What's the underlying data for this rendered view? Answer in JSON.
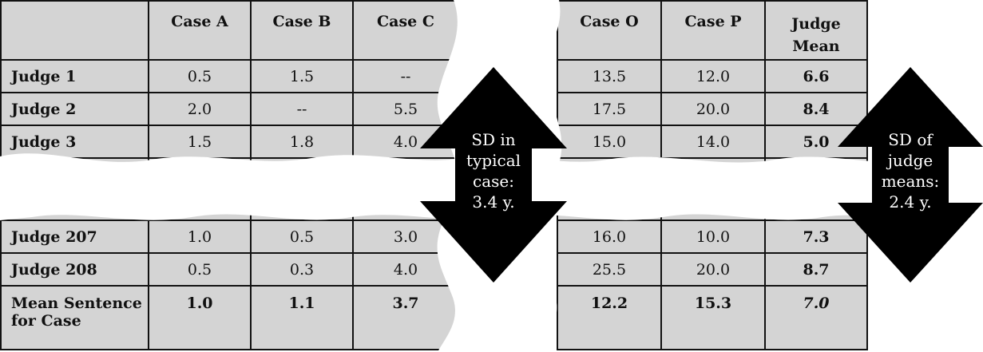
{
  "left_table": {
    "headers": [
      "",
      "Case A",
      "Case B",
      "Case C"
    ],
    "rows": [
      {
        "label": "Judge 1",
        "cells": [
          "0.5",
          "1.5",
          "--"
        ]
      },
      {
        "label": "Judge 2",
        "cells": [
          "2.0",
          "--",
          "5.5"
        ]
      },
      {
        "label": "Judge 3",
        "cells": [
          "1.5",
          "1.8",
          "4.0"
        ]
      },
      {
        "label": "",
        "cells": [
          "",
          "",
          ""
        ]
      },
      {
        "label": "Judge 207",
        "cells": [
          "1.0",
          "0.5",
          "3.0"
        ]
      },
      {
        "label": "Judge 208",
        "cells": [
          "0.5",
          "0.3",
          "4.0"
        ]
      },
      {
        "label": "Mean Sentence for Case",
        "cells": [
          "1.0",
          "1.1",
          "3.7"
        ]
      }
    ]
  },
  "right_table": {
    "headers": [
      "Case O",
      "Case P",
      "Judge Mean"
    ],
    "rows": [
      {
        "cells": [
          "13.5",
          "12.0",
          "6.6"
        ]
      },
      {
        "cells": [
          "17.5",
          "20.0",
          "8.4"
        ]
      },
      {
        "cells": [
          "15.0",
          "14.0",
          "5.0"
        ]
      },
      {
        "cells": [
          "",
          "",
          ""
        ]
      },
      {
        "cells": [
          "16.0",
          "10.0",
          "7.3"
        ]
      },
      {
        "cells": [
          "25.5",
          "20.0",
          "8.7"
        ]
      },
      {
        "cells": [
          "12.2",
          "15.3",
          "7.0"
        ]
      }
    ]
  },
  "annotations": {
    "middle_arrow": {
      "lines": [
        "SD in",
        "typical",
        "case:",
        "3.4 y."
      ]
    },
    "right_arrow": {
      "lines": [
        "SD of",
        "judge",
        "means:",
        "2.4 y."
      ]
    }
  },
  "colors": {
    "cell_fill": "#d4d4d4",
    "border": "#111111",
    "arrow": "#000000",
    "background": "#ffffff"
  }
}
